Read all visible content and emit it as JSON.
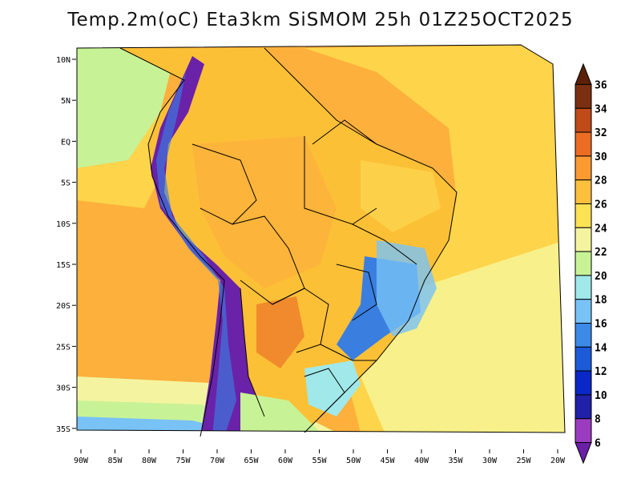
{
  "title": "Temp.2m(oC) Eta3km SiSMOM 25h 01Z25OCT2025",
  "colors": {
    "ocean_warm": "#fdb03c",
    "ocean_mid": "#fddc50",
    "ocean_cool": "#f8f89c",
    "land": "#fcc037",
    "andes": "#6a22a8",
    "highlands": "#3a7ee0",
    "border": "#000000"
  },
  "axes": {
    "lon_labels": [
      "90W",
      "85W",
      "80W",
      "75W",
      "70W",
      "65W",
      "60W",
      "55W",
      "50W",
      "45W",
      "40W",
      "35W",
      "30W",
      "25W",
      "20W"
    ],
    "lat_labels": [
      "10N",
      "5N",
      "EQ",
      "5S",
      "10S",
      "15S",
      "20S",
      "25S",
      "30S",
      "35S"
    ]
  },
  "colorbar": {
    "levels": [
      "6",
      "8",
      "10",
      "12",
      "14",
      "16",
      "18",
      "20",
      "22",
      "24",
      "26",
      "28",
      "30",
      "32",
      "34",
      "36"
    ],
    "colors": [
      "#6a1fa6",
      "#9b3cc0",
      "#2020a8",
      "#0a28c8",
      "#1c5ad8",
      "#3c8ae8",
      "#78c2f6",
      "#a0e8ea",
      "#c8f296",
      "#f4f4a0",
      "#fde254",
      "#fdc03c",
      "#fc9a32",
      "#ec6c24",
      "#c04a18",
      "#7a3010",
      "#5a2008"
    ]
  }
}
